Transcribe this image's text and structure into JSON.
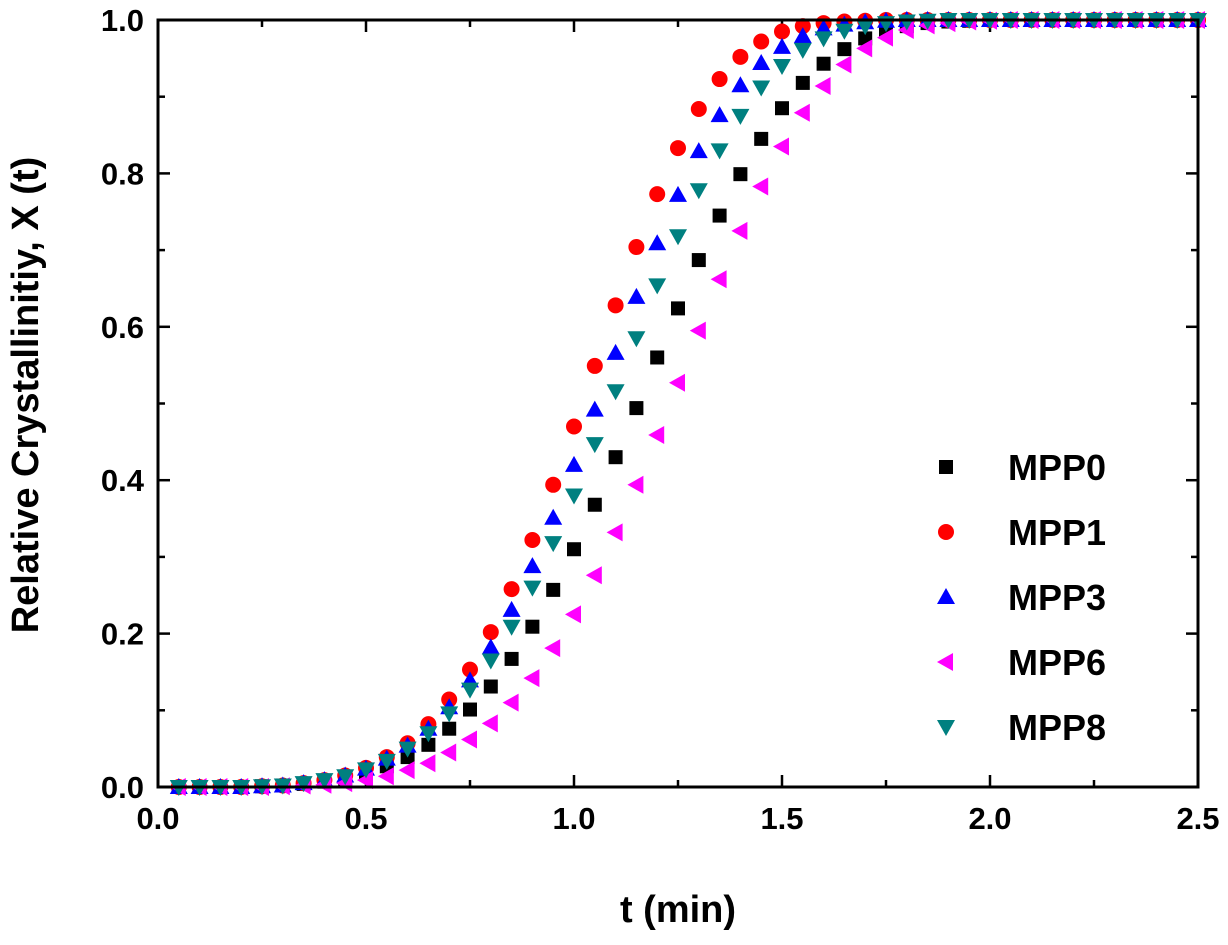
{
  "chart_data": {
    "type": "scatter",
    "title": "",
    "xlabel": "t (min)",
    "ylabel": "Relative Crystallinitiy, X (t)",
    "xlim": [
      0.0,
      2.5
    ],
    "ylim": [
      0.0,
      1.0
    ],
    "x_ticks": [
      "0.0",
      "0.5",
      "1.0",
      "1.5",
      "2.0",
      "2.5"
    ],
    "y_ticks": [
      "0.0",
      "0.2",
      "0.4",
      "0.6",
      "0.8",
      "1.0"
    ],
    "grid": false,
    "legend_position": "center-right",
    "x": [
      0.05,
      0.1,
      0.15,
      0.2,
      0.25,
      0.3,
      0.35,
      0.4,
      0.45,
      0.5,
      0.55,
      0.6,
      0.65,
      0.7,
      0.75,
      0.8,
      0.85,
      0.9,
      0.95,
      1.0,
      1.05,
      1.1,
      1.15,
      1.2,
      1.25,
      1.3,
      1.35,
      1.4,
      1.45,
      1.5,
      1.55,
      1.6,
      1.65,
      1.7,
      1.75,
      1.8,
      1.85,
      1.9,
      1.95,
      2.0,
      2.05,
      2.1,
      2.15,
      2.2,
      2.25,
      2.3,
      2.35,
      2.4,
      2.45,
      2.5
    ],
    "series": [
      {
        "name": "MPP0",
        "color": "#000000",
        "marker": "square",
        "values": [
          0.0,
          0.0,
          0.0,
          0.0,
          0.001,
          0.002,
          0.004,
          0.007,
          0.011,
          0.018,
          0.027,
          0.039,
          0.055,
          0.076,
          0.101,
          0.131,
          0.167,
          0.209,
          0.257,
          0.31,
          0.368,
          0.43,
          0.494,
          0.56,
          0.624,
          0.687,
          0.745,
          0.799,
          0.845,
          0.885,
          0.918,
          0.943,
          0.962,
          0.976,
          0.985,
          0.992,
          0.996,
          0.998,
          0.999,
          1.0,
          1.0,
          1.0,
          1.0,
          1.0,
          1.0,
          1.0,
          1.0,
          1.0,
          1.0,
          1.0
        ]
      },
      {
        "name": "MPP1",
        "color": "#ff0000",
        "marker": "circle",
        "values": [
          0.0,
          0.0,
          0.0,
          0.0,
          0.001,
          0.002,
          0.005,
          0.009,
          0.015,
          0.025,
          0.039,
          0.057,
          0.082,
          0.114,
          0.153,
          0.202,
          0.258,
          0.322,
          0.394,
          0.47,
          0.549,
          0.628,
          0.704,
          0.773,
          0.833,
          0.884,
          0.923,
          0.952,
          0.972,
          0.985,
          0.992,
          0.996,
          0.998,
          0.999,
          1.0,
          1.0,
          1.0,
          1.0,
          1.0,
          1.0,
          1.0,
          1.0,
          1.0,
          1.0,
          1.0,
          1.0,
          1.0,
          1.0,
          1.0,
          1.0
        ]
      },
      {
        "name": "MPP3",
        "color": "#0000ff",
        "marker": "triangle-up",
        "values": [
          0.0,
          0.0,
          0.0,
          0.0,
          0.001,
          0.002,
          0.005,
          0.009,
          0.015,
          0.024,
          0.037,
          0.054,
          0.076,
          0.104,
          0.139,
          0.182,
          0.231,
          0.288,
          0.351,
          0.42,
          0.492,
          0.566,
          0.639,
          0.709,
          0.772,
          0.829,
          0.876,
          0.915,
          0.944,
          0.965,
          0.979,
          0.989,
          0.994,
          0.997,
          0.999,
          1.0,
          1.0,
          1.0,
          1.0,
          1.0,
          1.0,
          1.0,
          1.0,
          1.0,
          1.0,
          1.0,
          1.0,
          1.0,
          1.0,
          1.0
        ]
      },
      {
        "name": "MPP6",
        "color": "#ff00ff",
        "marker": "triangle-left",
        "values": [
          0.0,
          0.0,
          0.0,
          0.0,
          0.0,
          0.001,
          0.002,
          0.003,
          0.005,
          0.009,
          0.014,
          0.022,
          0.031,
          0.045,
          0.062,
          0.083,
          0.11,
          0.142,
          0.181,
          0.225,
          0.276,
          0.332,
          0.394,
          0.459,
          0.527,
          0.595,
          0.662,
          0.725,
          0.783,
          0.835,
          0.879,
          0.914,
          0.942,
          0.963,
          0.977,
          0.987,
          0.993,
          0.996,
          0.998,
          0.999,
          1.0,
          1.0,
          1.0,
          1.0,
          1.0,
          1.0,
          1.0,
          1.0,
          1.0,
          1.0
        ]
      },
      {
        "name": "MPP8",
        "color": "#008080",
        "marker": "triangle-down",
        "values": [
          0.0,
          0.0,
          0.0,
          0.0,
          0.001,
          0.002,
          0.005,
          0.009,
          0.014,
          0.023,
          0.034,
          0.05,
          0.07,
          0.096,
          0.127,
          0.165,
          0.209,
          0.26,
          0.318,
          0.38,
          0.447,
          0.516,
          0.585,
          0.654,
          0.718,
          0.778,
          0.83,
          0.875,
          0.912,
          0.94,
          0.961,
          0.976,
          0.986,
          0.992,
          0.996,
          0.998,
          0.999,
          1.0,
          1.0,
          1.0,
          1.0,
          1.0,
          1.0,
          1.0,
          1.0,
          1.0,
          1.0,
          1.0,
          1.0,
          1.0
        ]
      }
    ]
  }
}
